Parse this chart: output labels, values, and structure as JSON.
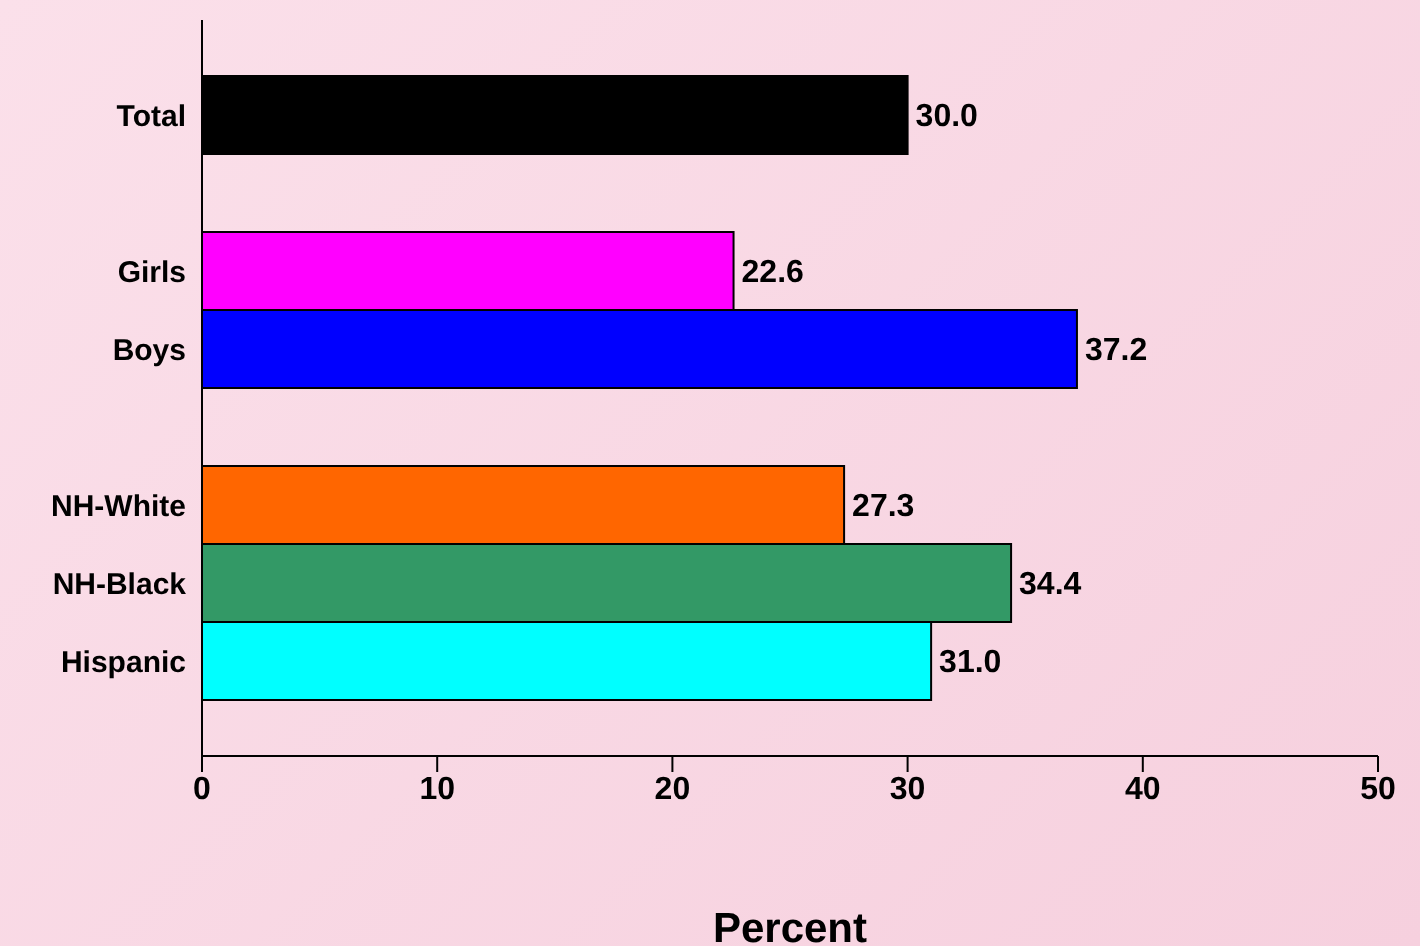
{
  "chart_data": {
    "type": "bar",
    "orientation": "horizontal",
    "xlabel": "Percent",
    "categories": [
      "Total",
      null,
      "Girls",
      "Boys",
      null,
      "NH-White",
      "NH-Black",
      "Hispanic"
    ],
    "values": [
      30.0,
      null,
      22.6,
      37.2,
      null,
      27.3,
      34.4,
      31.0
    ],
    "colors": [
      "#000000",
      "#000000",
      "#ff00ff",
      "#0000ff",
      "#000000",
      "#ff6600",
      "#339966",
      "#00ffff"
    ],
    "value_labels": [
      "30.0",
      null,
      "22.6",
      "37.2",
      null,
      "27.3",
      "34.4",
      "31.0"
    ],
    "xlim": [
      0,
      50
    ],
    "xticks": [
      0,
      10,
      20,
      30,
      40,
      50
    ],
    "grid": false,
    "legend": false
  }
}
